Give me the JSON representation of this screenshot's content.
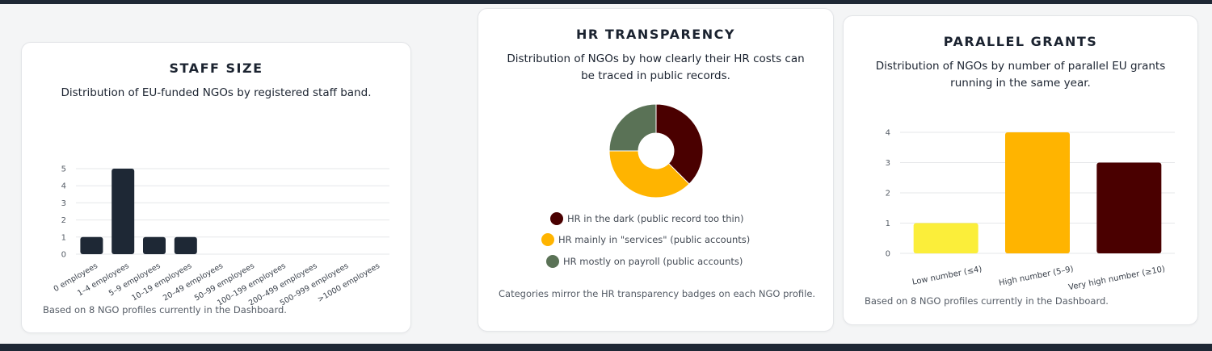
{
  "colors": {
    "navy": "#1e2835",
    "dark_red": "#4a0000",
    "amber": "#ffb400",
    "yellow": "#fbee3a",
    "green": "#5a7256"
  },
  "staff_card": {
    "title": "STAFF SIZE",
    "subtitle": "Distribution of EU-funded NGOs by registered staff band.",
    "note": "Based on 8 NGO profiles currently in the Dashboard."
  },
  "hr_card": {
    "title": "HR TRANSPARENCY",
    "subtitle": "Distribution of NGOs by how clearly their HR costs can be traced in public records.",
    "note": "Categories mirror the HR transparency badges on each NGO profile."
  },
  "grants_card": {
    "title": "PARALLEL GRANTS",
    "subtitle": "Distribution of NGOs by number of parallel EU grants running in the same year.",
    "note": "Based on 8 NGO profiles currently in the Dashboard."
  },
  "chart_data": [
    {
      "type": "bar",
      "title": "STAFF SIZE",
      "categories": [
        "0 employees",
        "1–4 employees",
        "5–9 employees",
        "10–19 employees",
        "20–49 employees",
        "50–99 employees",
        "100–199 employees",
        "200–499 employees",
        "500–999 employees",
        ">1000 employees"
      ],
      "values": [
        1,
        5,
        1,
        1,
        0,
        0,
        0,
        0,
        0,
        0
      ],
      "yticks": [
        0,
        1,
        2,
        3,
        4,
        5
      ],
      "ylim": [
        0,
        5
      ],
      "grid": true,
      "color": "#1e2835"
    },
    {
      "type": "pie",
      "title": "HR TRANSPARENCY",
      "donut": true,
      "labels": [
        "HR in the dark (public record too thin)",
        "HR mainly in \"services\" (public accounts)",
        "HR mostly on payroll (public accounts)"
      ],
      "values": [
        3,
        3,
        2
      ],
      "colors": [
        "#4a0000",
        "#ffb400",
        "#5a7256"
      ],
      "legend_position": "bottom"
    },
    {
      "type": "bar",
      "title": "PARALLEL GRANTS",
      "categories": [
        "Low number (≤4)",
        "High number (5–9)",
        "Very high number (≥10)"
      ],
      "values": [
        1,
        4,
        3
      ],
      "yticks": [
        0,
        1,
        2,
        3,
        4
      ],
      "ylim": [
        0,
        4
      ],
      "grid": true,
      "colors": [
        "#fbee3a",
        "#ffb400",
        "#4a0000"
      ]
    }
  ]
}
